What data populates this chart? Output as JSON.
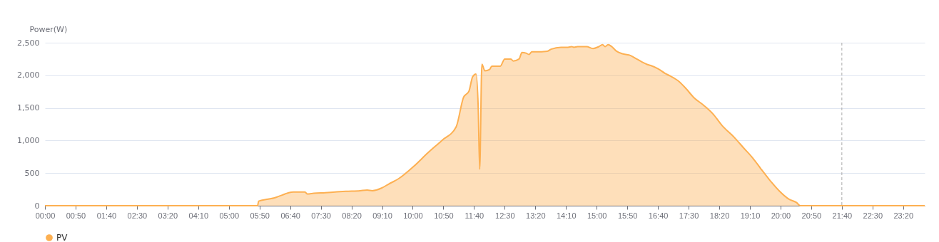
{
  "chart_data": {
    "type": "area",
    "ylabel": "Power(W)",
    "x": [
      0,
      5.78,
      5.81,
      6.07,
      6.24,
      6.34,
      6.53,
      6.63,
      6.76,
      6.92,
      7.07,
      7.13,
      7.31,
      7.62,
      7.89,
      8.18,
      8.57,
      8.76,
      8.9,
      9.15,
      9.34,
      9.63,
      10.02,
      10.41,
      10.79,
      11.18,
      11.38,
      11.53,
      11.63,
      11.72,
      11.78,
      11.82,
      11.88,
      11.96,
      12.09,
      12.15,
      12.38,
      12.5,
      12.67,
      12.73,
      12.89,
      12.97,
      13.08,
      13.16,
      13.24,
      13.41,
      13.66,
      13.76,
      14.03,
      14.22,
      14.32,
      14.38,
      14.48,
      14.73,
      14.9,
      15.06,
      15.16,
      15.23,
      15.31,
      15.41,
      15.54,
      15.7,
      15.89,
      16.09,
      16.36,
      16.47,
      16.67,
      16.86,
      17.0,
      17.25,
      17.44,
      17.64,
      17.91,
      18.16,
      18.41,
      18.74,
      18.99,
      19.26,
      19.46,
      19.71,
      19.96,
      20.23,
      20.43,
      20.54,
      23.92
    ],
    "series": [
      {
        "name": "PV",
        "color": "#fdb052",
        "values": [
          0,
          0,
          70,
          100,
          120,
          140,
          180,
          200,
          210,
          210,
          210,
          180,
          190,
          200,
          210,
          220,
          230,
          240,
          230,
          270,
          330,
          420,
          600,
          810,
          1000,
          1210,
          1660,
          1760,
          1980,
          2020,
          1500,
          560,
          2170,
          2070,
          2090,
          2140,
          2140,
          2250,
          2250,
          2220,
          2250,
          2350,
          2340,
          2320,
          2360,
          2360,
          2370,
          2400,
          2430,
          2430,
          2440,
          2430,
          2440,
          2440,
          2410,
          2440,
          2470,
          2440,
          2470,
          2440,
          2370,
          2330,
          2310,
          2250,
          2170,
          2150,
          2100,
          2030,
          1990,
          1900,
          1790,
          1660,
          1540,
          1410,
          1230,
          1050,
          890,
          720,
          570,
          390,
          230,
          100,
          50,
          0,
          0
        ]
      }
    ],
    "xlim": [
      0,
      23.92
    ],
    "xticks": [
      {
        "value": 0,
        "label": "00:00"
      },
      {
        "value": 0.8333,
        "label": "00:50"
      },
      {
        "value": 1.6667,
        "label": "01:40"
      },
      {
        "value": 2.5,
        "label": "02:30"
      },
      {
        "value": 3.3333,
        "label": "03:20"
      },
      {
        "value": 4.1667,
        "label": "04:10"
      },
      {
        "value": 5,
        "label": "05:00"
      },
      {
        "value": 5.8333,
        "label": "05:50"
      },
      {
        "value": 6.6667,
        "label": "06:40"
      },
      {
        "value": 7.5,
        "label": "07:30"
      },
      {
        "value": 8.3333,
        "label": "08:20"
      },
      {
        "value": 9.1667,
        "label": "09:10"
      },
      {
        "value": 10,
        "label": "10:00"
      },
      {
        "value": 10.8333,
        "label": "10:50"
      },
      {
        "value": 11.6667,
        "label": "11:40"
      },
      {
        "value": 12.5,
        "label": "12:30"
      },
      {
        "value": 13.3333,
        "label": "13:20"
      },
      {
        "value": 14.1667,
        "label": "14:10"
      },
      {
        "value": 15,
        "label": "15:00"
      },
      {
        "value": 15.8333,
        "label": "15:50"
      },
      {
        "value": 16.6667,
        "label": "16:40"
      },
      {
        "value": 17.5,
        "label": "17:30"
      },
      {
        "value": 18.3333,
        "label": "18:20"
      },
      {
        "value": 19.1667,
        "label": "19:10"
      },
      {
        "value": 20,
        "label": "20:00"
      },
      {
        "value": 20.8333,
        "label": "20:50"
      },
      {
        "value": 21.6667,
        "label": "21:40"
      },
      {
        "value": 22.5,
        "label": "22:30"
      },
      {
        "value": 23.3333,
        "label": "23:20"
      }
    ],
    "ylim": [
      0,
      2500
    ],
    "yticks": [
      {
        "value": 0,
        "label": "0"
      },
      {
        "value": 500,
        "label": "500"
      },
      {
        "value": 1000,
        "label": "1,000"
      },
      {
        "value": 1500,
        "label": "1,500"
      },
      {
        "value": 2000,
        "label": "2,000"
      },
      {
        "value": 2500,
        "label": "2,500"
      }
    ],
    "grid": "y",
    "legend": "bottom",
    "marker": "none",
    "ref_lines": [
      {
        "axis": "x",
        "value": 21.6667,
        "color": "#aaaaaa",
        "line_style": "dashed"
      }
    ]
  }
}
